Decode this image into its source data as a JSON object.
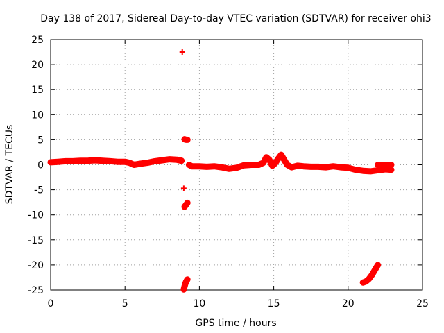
{
  "chart_data": {
    "type": "scatter",
    "title": "Day 138 of 2017, Sidereal Day-to-day VTEC variation (SDTVAR) for receiver ohi3",
    "xlabel": "GPS time / hours",
    "ylabel": "SDTVAR / TECUs",
    "xlim": [
      0,
      25
    ],
    "ylim": [
      -25,
      25
    ],
    "xticks": [
      0,
      5,
      10,
      15,
      20,
      25
    ],
    "yticks": [
      -25,
      -20,
      -15,
      -10,
      -5,
      0,
      5,
      10,
      15,
      20,
      25
    ],
    "grid": true,
    "series": [
      {
        "name": "SDTVAR",
        "color": "#ff0000",
        "marker": "plus",
        "segments": [
          {
            "x": [
              0,
              0.5,
              1,
              1.5,
              2,
              2.5,
              3,
              3.5,
              4,
              4.5,
              5,
              5.3,
              5.6,
              6.0,
              6.5,
              7.0,
              7.5,
              8.0,
              8.5,
              8.8
            ],
            "y": [
              0.5,
              0.6,
              0.7,
              0.7,
              0.8,
              0.8,
              0.9,
              0.8,
              0.7,
              0.6,
              0.6,
              0.4,
              0.0,
              0.2,
              0.4,
              0.7,
              0.9,
              1.1,
              1.0,
              0.8
            ]
          },
          {
            "x": [
              9.3,
              9.5,
              10,
              10.5,
              11,
              11.5,
              12,
              12.5,
              13,
              13.5,
              14,
              14.3,
              14.5,
              14.7,
              14.9,
              15.1,
              15.3,
              15.5,
              15.7,
              15.9,
              16.2,
              16.6,
              17,
              17.5,
              18,
              18.5,
              19,
              19.5,
              20,
              20.5,
              21,
              21.5,
              22,
              22.5,
              22.9
            ],
            "y": [
              0.0,
              -0.3,
              -0.3,
              -0.4,
              -0.3,
              -0.5,
              -0.8,
              -0.6,
              -0.1,
              0.0,
              0.0,
              0.4,
              1.5,
              1.0,
              -0.2,
              0.3,
              1.2,
              2.0,
              1.0,
              0.0,
              -0.5,
              -0.2,
              -0.3,
              -0.4,
              -0.4,
              -0.5,
              -0.3,
              -0.5,
              -0.6,
              -1.0,
              -1.2,
              -1.3,
              -1.1,
              -0.9,
              -1.0
            ]
          },
          {
            "x": [
              22.0,
              22.3,
              22.6,
              22.9
            ],
            "y": [
              0.0,
              0.0,
              0.0,
              0.0
            ]
          },
          {
            "x": [
              8.85
            ],
            "y": [
              22.5
            ]
          },
          {
            "x": [
              9.0,
              9.1,
              9.2
            ],
            "y": [
              5.1,
              5.0,
              5.0
            ]
          },
          {
            "x": [
              8.95
            ],
            "y": [
              -4.7
            ]
          },
          {
            "x": [
              9.0,
              9.1,
              9.2
            ],
            "y": [
              -8.4,
              -8.0,
              -7.6
            ]
          },
          {
            "x": [
              8.95,
              9.0,
              9.05,
              9.1,
              9.15,
              9.2
            ],
            "y": [
              -24.9,
              -24.3,
              -23.8,
              -23.4,
              -23.1,
              -22.9
            ]
          },
          {
            "x": [
              21.0,
              21.2,
              21.4,
              21.6,
              21.8,
              22.0
            ],
            "y": [
              -23.5,
              -23.3,
              -22.8,
              -22.0,
              -21.0,
              -20.0
            ]
          }
        ]
      }
    ]
  }
}
